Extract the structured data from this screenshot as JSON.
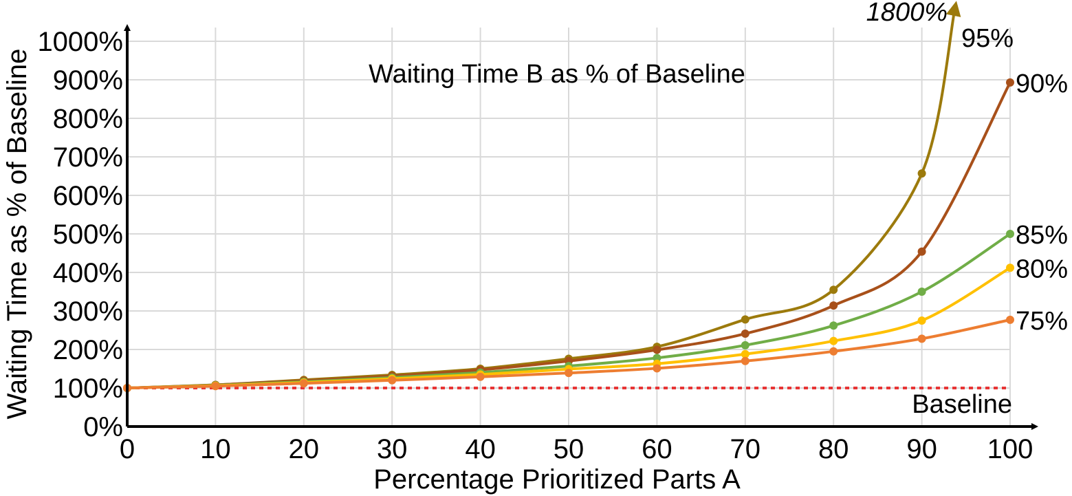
{
  "chart_data": {
    "type": "line",
    "title": "Waiting Time B as % of Baseline",
    "xlabel": "Percentage Prioritized Parts A",
    "ylabel": "Waiting Time as % of Baseline",
    "x": [
      0,
      10,
      20,
      30,
      40,
      50,
      60,
      70,
      80,
      90,
      100
    ],
    "xticks": [
      "0",
      "10",
      "20",
      "30",
      "40",
      "50",
      "60",
      "70",
      "80",
      "90",
      "100"
    ],
    "yticks": [
      "0%",
      "100%",
      "200%",
      "300%",
      "400%",
      "500%",
      "600%",
      "700%",
      "800%",
      "900%",
      "1000%"
    ],
    "xlim": [
      0,
      100
    ],
    "ylim": [
      0,
      1000
    ],
    "grid": true,
    "series": [
      {
        "name": "95%",
        "color": "#9C7A0C",
        "values": [
          100,
          108,
          121,
          134,
          150,
          176,
          207,
          278,
          355,
          657,
          1800
        ]
      },
      {
        "name": "90%",
        "color": "#A8501A",
        "values": [
          100,
          108,
          119,
          131,
          147,
          170,
          199,
          241,
          314,
          454,
          893
        ]
      },
      {
        "name": "85%",
        "color": "#70AD47",
        "values": [
          100,
          107,
          116,
          127,
          140,
          157,
          178,
          211,
          262,
          350,
          500
        ]
      },
      {
        "name": "80%",
        "color": "#FFC000",
        "values": [
          100,
          106,
          114,
          124,
          135,
          149,
          163,
          188,
          222,
          275,
          412
        ]
      },
      {
        "name": "75%",
        "color": "#ED7D31",
        "values": [
          100,
          105,
          112,
          120,
          129,
          139,
          151,
          170,
          195,
          228,
          277
        ]
      }
    ],
    "baseline": {
      "label": "Baseline",
      "value": 100,
      "color": "#E83434"
    },
    "overflow_label": "1800%"
  }
}
